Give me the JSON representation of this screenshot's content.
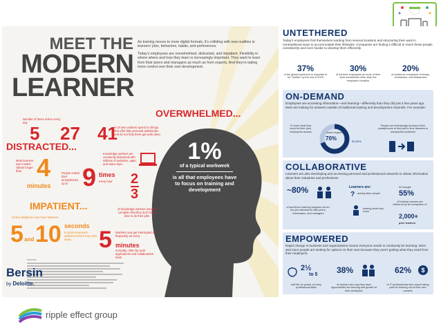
{
  "left_panel": {
    "title_line1": "MEET THE",
    "title_line2": "MODERN",
    "title_line3": "LEARNER",
    "intro_p1": "As training moves to more digital formats, it's colliding with new realities in learners' jobs, behaviors, habits, and preferences.",
    "intro_p2": "Today's employees are overwhelmed, distracted, and impatient. Flexibility in where where and how they learn is increasingly important. They want to learn from their peers and managers as much as from experts. And they're taking more control over their own development.",
    "overwhelmed_label": "OVERWHELMED...",
    "distracted_label": "DISTRACTED...",
    "impatient_label": "IMPATIENT...",
    "stat_5": "5",
    "stat_27": "27",
    "stat_5_caption": "Number of times online every day",
    "stat_27_caption": "early this  today",
    "stat_41": "41",
    "stat_41_caption": "% of time workers spend on things that offer little personal satisfaction and do not help them get work done.",
    "stat_knowledge": "Knowledge workers are constantly distracted with millions of websites, apps, and video clips.",
    "stat_4": "4",
    "stat_4_unit": "minutes",
    "stat_4_caption": "Most learners won't watch videos longer than",
    "stat_9": "9",
    "stat_9_unit": "times",
    "stat_9_unit2": "every hour",
    "stat_9_caption": "People unlock their smartphones up to",
    "stat_2_3_top": "2",
    "stat_2_3_bottom": "3",
    "stat_2_3_caption": "of knowledge workers actually complain that they don't have time to do their jobs",
    "stat_5_10_a": "5",
    "stat_5_10_and": "and",
    "stat_5_10_b": "10",
    "stat_5_10_unit": "seconds",
    "stat_5_10_caption_top": "Online designers now have between",
    "stat_5_10_caption": "to grab someone's attention before they click away",
    "stat_5_min": "5",
    "stat_5_min_unit": "minutes",
    "stat_5_min_caption": "Workers now get interrupted as frequently as every",
    "stat_5_min_caption2": "ironically, often by work applications and collaboration tools",
    "center_pct": "1%",
    "center_text1": "of a typical workweek",
    "center_text2": "is all that employees have to focus on training and development",
    "brand_name": "Bersin",
    "brand_by": "by",
    "brand_deloitte": "Deloitte.",
    "sources_label": "Sources:"
  },
  "right_panel": {
    "untethered": {
      "title": "UNTETHERED",
      "text": "Today's employees find themselves working from several locations and structuring their work in nontraditional ways to accommodate their lifestyles. Companies are finding it difficult to reach these people consistently and even harder to develop them efficiently.",
      "stats": [
        {
          "value": "37%",
          "caption": "of the global workforce is expected to be \"mobile\" by the end of 2015"
        },
        {
          "value": "30%",
          "caption": "of full-time employees do most of their work somewhere other than the employer's location"
        },
        {
          "value": "20%",
          "caption": "of workforce comprised of temps, contractors, and freelancers"
        }
      ]
    },
    "on_demand": {
      "title": "ON-DEMAND",
      "text": "Employees are accessing information—and learning—differently than they did just a few years ago. Most are looking for answers outside of traditional training and development channels. For example:",
      "left_caption": "To learn what they need for their jobs, employees access",
      "donut_inner": "search engines",
      "donut_pct": "70%",
      "donut_range": "50-60%",
      "right_caption": "People are increasingly turning to their smartphones to find just-in-time answers to unexpected problems"
    },
    "collaborative": {
      "title": "COLLABORATIVE",
      "text": "Learners are also developing and accessing personal and professional networks to obtain information about their industries and professions.",
      "stat1_value": "~80%",
      "stat1_caption": "of workforce learning happens via on-the-job interactions with peers, teammates, and managers",
      "learners_are": "Learners are:",
      "asking": "asking other people",
      "sharing": "sharing what they know",
      "google_label": "At Google",
      "google_pct": "55%",
      "google_caption": "of training courses are delivered by an ecosystem of",
      "google_count": "2,000+",
      "google_count_label": "peer trainers"
    },
    "empowered": {
      "title": "EMPOWERED",
      "text": "Rapid change in business and organizations means everyone needs to constantly be learning. More and more people are looking for options on their own because they aren't getting what they need from their employers.",
      "stat1_value": "2½",
      "stat1_value2": "to 5",
      "stat1_caption": "half-life (in years) of many professional skills",
      "stat2_value": "38%",
      "stat2_caption": "of workers who say they have opportunities for learning and growth at their workplace",
      "stat3_value": "62%",
      "stat3_caption": "of IT professionals who report taking paid for training out of their own pockets"
    }
  },
  "footer": {
    "brand_text": "ripple effect group"
  },
  "colors": {
    "navy": "#12346b",
    "red": "#d7262c",
    "orange": "#ef8a1e",
    "blue_section": "#dde6f3",
    "green": "#7ac143"
  }
}
